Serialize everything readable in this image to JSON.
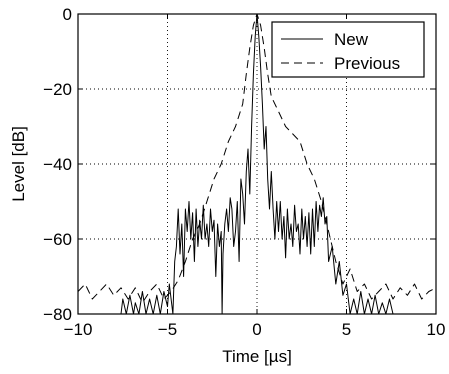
{
  "chart_data": {
    "type": "line",
    "title": "",
    "xlabel": "Time [µs]",
    "ylabel": "Level [dB]",
    "xlim": [
      -10,
      10
    ],
    "ylim": [
      -80,
      0
    ],
    "xticks": [
      "−10",
      "−5",
      "0",
      "5",
      "10"
    ],
    "xtick_values": [
      -10,
      -5,
      0,
      5,
      10
    ],
    "yticks": [
      "0",
      "−20",
      "−40",
      "−60",
      "−80"
    ],
    "ytick_values": [
      0,
      -20,
      -40,
      -60,
      -80
    ],
    "grid": true,
    "legend_position": "top-right",
    "series": [
      {
        "name": "New",
        "style": "solid",
        "color": "#000000",
        "x": [
          -7.6,
          -7.5,
          -7.3,
          -7.1,
          -6.9,
          -6.8,
          -6.6,
          -6.4,
          -6.2,
          -6.0,
          -5.8,
          -5.6,
          -5.4,
          -5.2,
          -5.0,
          -4.9,
          -4.7,
          -4.6,
          -4.5,
          -4.4,
          -4.3,
          -4.2,
          -4.1,
          -4.0,
          -3.9,
          -3.8,
          -3.7,
          -3.6,
          -3.5,
          -3.4,
          -3.3,
          -3.2,
          -3.1,
          -3.0,
          -2.9,
          -2.8,
          -2.7,
          -2.6,
          -2.5,
          -2.4,
          -2.3,
          -2.2,
          -2.1,
          -2.0,
          -1.95,
          -1.9,
          -1.8,
          -1.7,
          -1.6,
          -1.5,
          -1.4,
          -1.3,
          -1.2,
          -1.1,
          -1.0,
          -0.9,
          -0.8,
          -0.7,
          -0.6,
          -0.5,
          -0.4,
          -0.3,
          -0.2,
          -0.1,
          0.0,
          0.1,
          0.2,
          0.3,
          0.4,
          0.5,
          0.6,
          0.7,
          0.8,
          0.9,
          1.0,
          1.1,
          1.2,
          1.3,
          1.4,
          1.5,
          1.6,
          1.7,
          1.8,
          1.9,
          2.0,
          2.1,
          2.2,
          2.3,
          2.4,
          2.5,
          2.6,
          2.7,
          2.8,
          2.9,
          3.0,
          3.1,
          3.2,
          3.3,
          3.4,
          3.5,
          3.6,
          3.7,
          3.8,
          3.9,
          4.0,
          4.2,
          4.4,
          4.6,
          4.8,
          5.0,
          5.2,
          5.4,
          5.6,
          5.8,
          6.0,
          6.2,
          6.4,
          6.6,
          6.8,
          7.0,
          7.2,
          7.4,
          7.6
        ],
        "y": [
          -80,
          -76,
          -80,
          -75,
          -80,
          -77,
          -80,
          -74,
          -80,
          -76,
          -80,
          -75,
          -80,
          -74,
          -78,
          -72,
          -80,
          -66,
          -62,
          -52,
          -64,
          -56,
          -70,
          -52,
          -58,
          -50,
          -60,
          -53,
          -66,
          -52,
          -62,
          -55,
          -60,
          -51,
          -60,
          -56,
          -62,
          -52,
          -58,
          -55,
          -70,
          -56,
          -62,
          -58,
          -80,
          -64,
          -56,
          -52,
          -58,
          -49,
          -52,
          -62,
          -58,
          -50,
          -66,
          -44,
          -48,
          -56,
          -42,
          -36,
          -48,
          -30,
          -16,
          -6,
          0,
          -6,
          -14,
          -24,
          -36,
          -30,
          -44,
          -52,
          -42,
          -52,
          -60,
          -50,
          -58,
          -50,
          -60,
          -54,
          -65,
          -52,
          -60,
          -56,
          -62,
          -51,
          -58,
          -56,
          -64,
          -52,
          -60,
          -54,
          -62,
          -53,
          -64,
          -52,
          -62,
          -50,
          -58,
          -51,
          -54,
          -49,
          -56,
          -54,
          -66,
          -62,
          -72,
          -66,
          -75,
          -72,
          -80,
          -76,
          -80,
          -74,
          -80,
          -76,
          -80,
          -75,
          -80,
          -77,
          -80,
          -76,
          -80
        ]
      },
      {
        "name": "Previous",
        "style": "dashed",
        "color": "#000000",
        "x": [
          -10.0,
          -9.6,
          -9.2,
          -8.8,
          -8.4,
          -8.0,
          -7.6,
          -7.2,
          -6.8,
          -6.4,
          -6.0,
          -5.6,
          -5.2,
          -4.8,
          -4.4,
          -4.0,
          -3.6,
          -3.2,
          -2.8,
          -2.4,
          -2.0,
          -1.6,
          -1.2,
          -0.8,
          -0.6,
          -0.4,
          -0.2,
          0.0,
          0.2,
          0.4,
          0.6,
          0.8,
          1.2,
          1.6,
          2.0,
          2.4,
          2.8,
          3.2,
          3.6,
          4.0,
          4.4,
          4.8,
          5.2,
          5.6,
          6.0,
          6.4,
          6.8,
          7.2,
          7.6,
          8.0,
          8.4,
          8.8,
          9.2,
          9.6,
          10.0
        ],
        "y": [
          -74,
          -72,
          -76,
          -74,
          -72,
          -75,
          -73,
          -76,
          -73,
          -77,
          -74,
          -72,
          -76,
          -74,
          -71,
          -66,
          -60,
          -56,
          -50,
          -44,
          -40,
          -34,
          -30,
          -24,
          -16,
          -9,
          -3,
          0,
          -3,
          -9,
          -16,
          -22,
          -26,
          -30,
          -32,
          -34,
          -40,
          -44,
          -50,
          -58,
          -66,
          -72,
          -68,
          -74,
          -72,
          -76,
          -74,
          -72,
          -76,
          -73,
          -75,
          -72,
          -76,
          -74,
          -73
        ]
      }
    ]
  }
}
